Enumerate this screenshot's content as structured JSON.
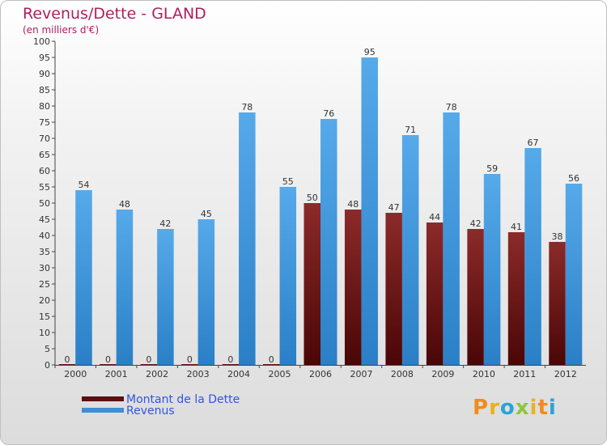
{
  "chart_data": {
    "type": "bar",
    "title": "Revenus/Dette - GLAND",
    "subtitle": "(en milliers d'€)",
    "categories": [
      "2000",
      "2001",
      "2002",
      "2003",
      "2004",
      "2005",
      "2006",
      "2007",
      "2008",
      "2009",
      "2010",
      "2011",
      "2012"
    ],
    "series": [
      {
        "name": "Montant de la Dette",
        "color": "#7a1a1a",
        "values": [
          0,
          0,
          0,
          0,
          0,
          0,
          50,
          48,
          47,
          44,
          42,
          41,
          38
        ]
      },
      {
        "name": "Revenus",
        "color": "#4b9fe0",
        "values": [
          54,
          48,
          42,
          45,
          78,
          55,
          76,
          95,
          71,
          78,
          59,
          67,
          56
        ]
      }
    ],
    "ylim": [
      0,
      100
    ],
    "ytick_step": 5,
    "grid": false,
    "legend_position": "bottom-left"
  },
  "logo": {
    "text": "Proxiti",
    "colors": [
      "#f08c1e",
      "#e8b21a",
      "#2aa3d8",
      "#8cc63e",
      "#e8b21a",
      "#f08c1e",
      "#2aa3d8"
    ]
  }
}
